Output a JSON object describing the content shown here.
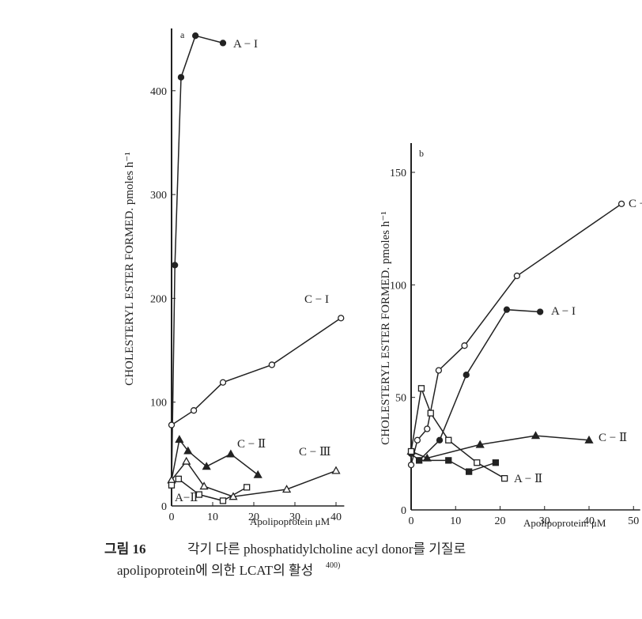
{
  "chart_data": [
    {
      "type": "line",
      "panel": "a",
      "ylabel": "CHOLESTERYL ESTER FORMED. pmoles h⁻¹",
      "xlabel": "Apolipoprotein  μM",
      "xlim": [
        0,
        42
      ],
      "ylim": [
        0,
        460
      ],
      "xticks": [
        0,
        10,
        20,
        30,
        40
      ],
      "yticks": [
        0,
        100,
        200,
        300,
        400
      ],
      "series": [
        {
          "name": "A − I",
          "marker": "circle-filled",
          "color": "#222",
          "x": [
            0,
            0.8,
            2.3,
            5.8,
            12.5
          ],
          "values": [
            20,
            232,
            413,
            453,
            446
          ]
        },
        {
          "name": "C − I",
          "marker": "circle-open",
          "color": "#222",
          "x": [
            0,
            5.4,
            12.5,
            24.4,
            41.2
          ],
          "values": [
            78,
            92,
            119,
            136,
            181
          ]
        },
        {
          "name": "C − Ⅱ",
          "marker": "triangle-filled",
          "color": "#222",
          "x": [
            0,
            1.9,
            4,
            8.5,
            14.4,
            21
          ],
          "values": [
            25,
            64,
            53,
            38,
            50,
            30
          ]
        },
        {
          "name": "C − Ⅲ",
          "marker": "triangle-open",
          "color": "#222",
          "x": [
            0,
            3.6,
            7.9,
            15,
            28,
            40
          ],
          "values": [
            25,
            43,
            19,
            9,
            16,
            34
          ]
        },
        {
          "name": "A−Ⅱ",
          "marker": "square-open",
          "color": "#222",
          "x": [
            0,
            1.7,
            6.7,
            12.5,
            18.3
          ],
          "values": [
            20,
            26,
            11,
            5,
            18
          ]
        }
      ]
    },
    {
      "type": "line",
      "panel": "b",
      "ylabel": "CHOLESTERYL ESTER FORMED. pmoles h⁻¹",
      "xlabel": "Apolipoprotein.  μM",
      "xlim": [
        0,
        51.5
      ],
      "ylim": [
        0,
        163
      ],
      "xticks": [
        0,
        10,
        20,
        30,
        40,
        50
      ],
      "yticks": [
        0,
        50,
        100,
        150
      ],
      "series": [
        {
          "name": "C − I",
          "marker": "circle-open",
          "color": "#222",
          "x": [
            0,
            1.4,
            3.6,
            6.2,
            12,
            23.8,
            47.3
          ],
          "values": [
            20,
            31,
            36,
            62,
            73,
            104,
            136
          ]
        },
        {
          "name": "A − I",
          "marker": "circle-filled",
          "color": "#222",
          "x": [
            0,
            1.8,
            6.4,
            12.4,
            21.5,
            29
          ],
          "values": [
            25,
            22,
            31,
            60,
            89,
            88
          ]
        },
        {
          "name": "C − Ⅱ",
          "marker": "triangle-filled",
          "color": "#222",
          "x": [
            0,
            3.6,
            15.5,
            28,
            40
          ],
          "values": [
            26,
            23,
            29,
            33,
            31
          ]
        },
        {
          "name": "A − Ⅱ",
          "marker": "square-open",
          "color": "#222",
          "x": [
            0,
            2.3,
            4.4,
            8.4,
            14.8,
            21
          ],
          "values": [
            26,
            54,
            43,
            31,
            21,
            14
          ]
        },
        {
          "marker": "square-filled",
          "color": "#222",
          "x": [
            1.8,
            8.4,
            13,
            19
          ],
          "values": [
            22,
            22,
            17,
            21
          ]
        }
      ]
    }
  ],
  "caption": {
    "figure": "그림 16",
    "line1": "각기 다른 phosphatidylcholine acyl donor를 기질로",
    "line2": "apolipoprotein에 의한 LCAT의 활성",
    "ref": "400)"
  }
}
